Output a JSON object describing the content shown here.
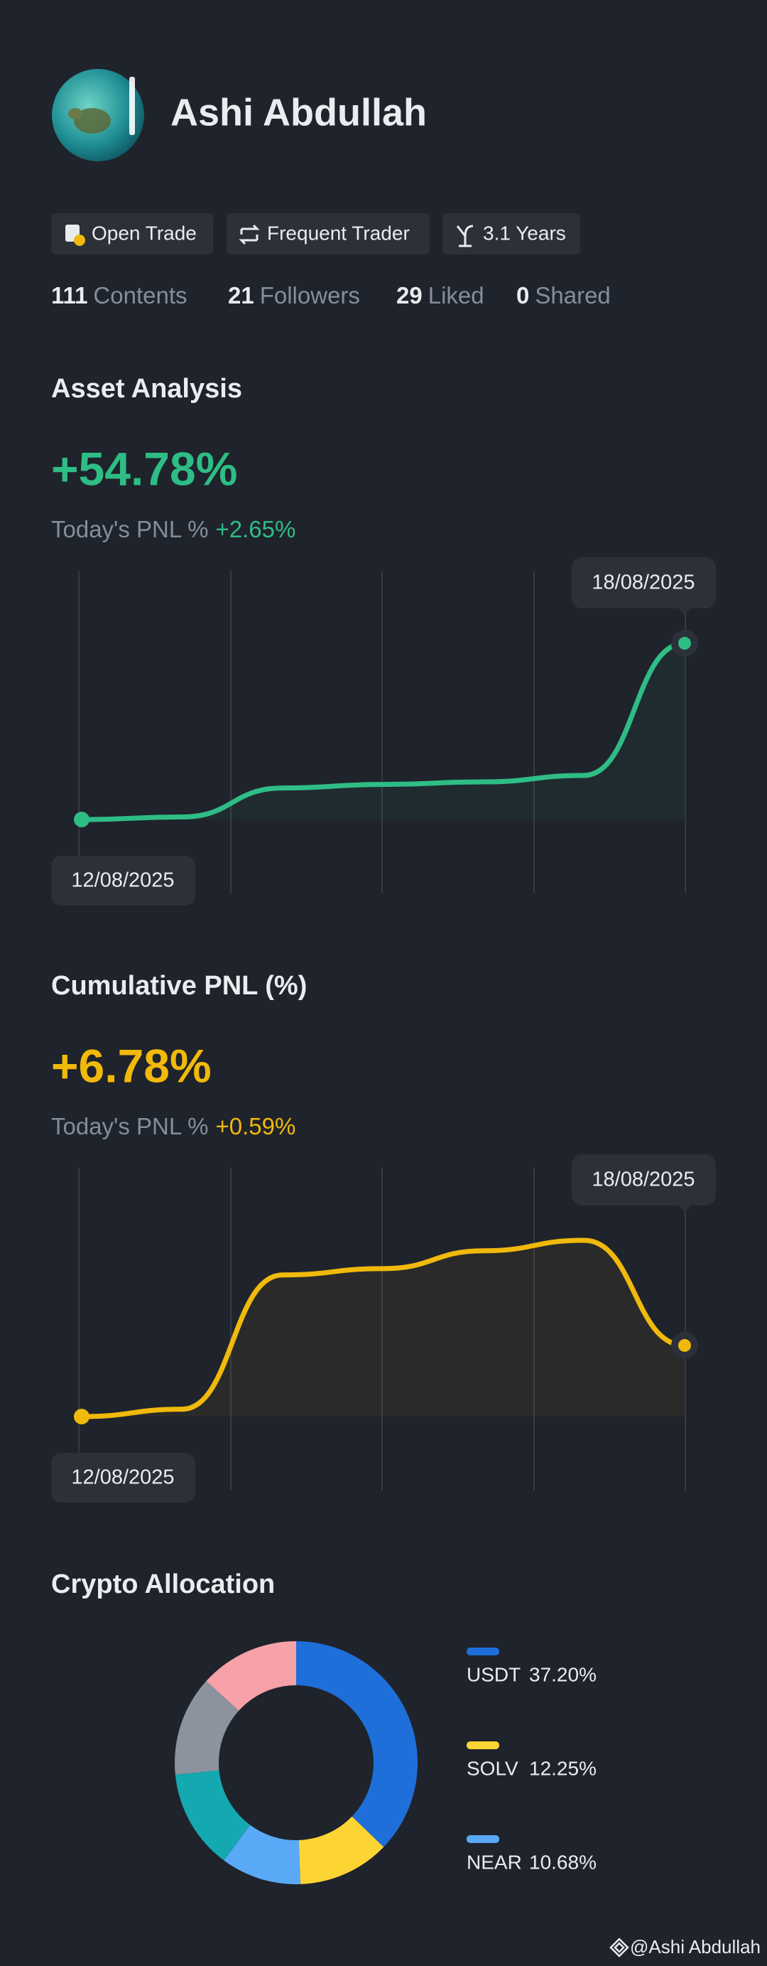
{
  "profile": {
    "name": "Ashi Abdullah",
    "tags": [
      "Open Trade",
      "Frequent Trader",
      "3.1 Years"
    ],
    "stats": [
      {
        "value": 111,
        "label": "Contents"
      },
      {
        "value": 21,
        "label": "Followers"
      },
      {
        "value": 29,
        "label": "Liked"
      },
      {
        "value": 0,
        "label": "Shared"
      }
    ]
  },
  "chart_data": [
    {
      "type": "line",
      "title": "Asset Analysis",
      "headline": "+54.78%",
      "pnl_label": "Today's PNL %",
      "pnl_value": "+2.65%",
      "x": [
        "12/08/2025",
        null,
        null,
        null,
        null,
        null,
        "18/08/2025"
      ],
      "values": [
        0,
        0.8,
        9.8,
        10.9,
        11.7,
        13.7,
        54.78
      ],
      "color": "#2ebd85"
    },
    {
      "type": "line",
      "title": "Cumulative PNL (%)",
      "headline": "+6.78%",
      "pnl_label": "Today's PNL %",
      "pnl_value": "+0.59%",
      "x": [
        "12/08/2025",
        null,
        null,
        null,
        null,
        null,
        "18/08/2025"
      ],
      "values": [
        0,
        0.7,
        13.5,
        14.1,
        15.8,
        16.8,
        6.78
      ],
      "color": "#f0b90b"
    },
    {
      "type": "pie",
      "title": "Crypto Allocation",
      "categories": [
        "USDT",
        "SOLV",
        "NEAR",
        null,
        null,
        null
      ],
      "values": [
        37.2,
        12.25,
        10.68,
        13.3,
        13.3,
        13.27
      ],
      "value_labels": [
        "37.20%",
        "12.25%",
        "10.68%",
        null,
        null,
        null
      ],
      "colors": [
        "#1e6fd9",
        "#fcd535",
        "#5aa9f7",
        "#14a8b0",
        "#8a939e",
        "#f7a1a8"
      ]
    }
  ],
  "watermark": "@Ashi Abdullah"
}
